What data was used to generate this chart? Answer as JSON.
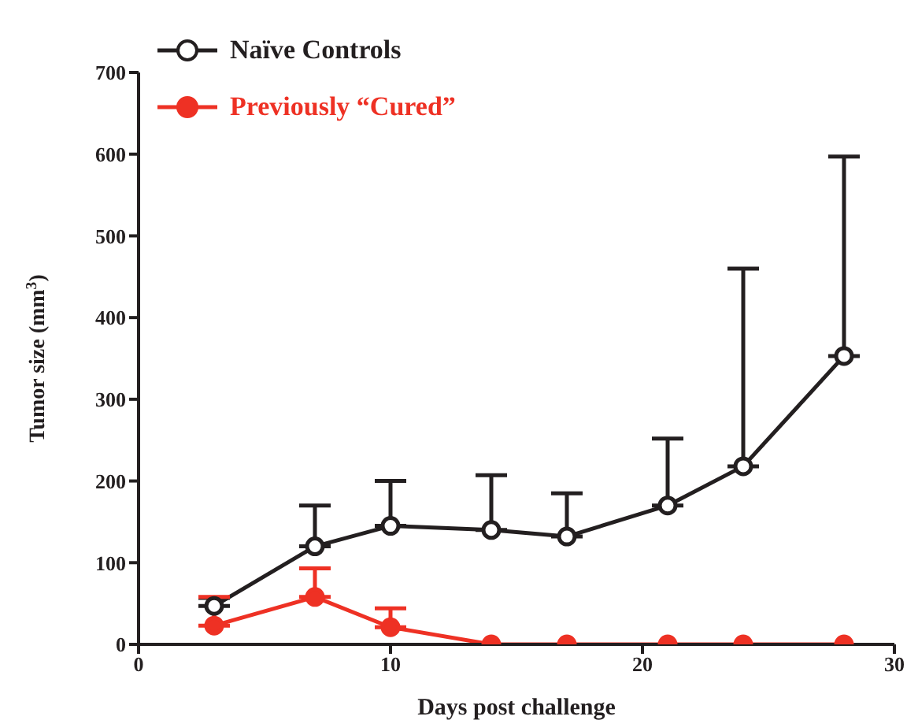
{
  "chart_data": {
    "type": "line",
    "xlabel": "Days post challenge",
    "ylabel": "Tumor size (mm$^{3}$)",
    "xlim": [
      0,
      30
    ],
    "xticks": [
      0,
      10,
      20,
      30
    ],
    "ylim": [
      0,
      700
    ],
    "yticks": [
      0,
      100,
      200,
      300,
      400,
      500,
      600,
      700
    ],
    "x": [
      3,
      7,
      10,
      14,
      17,
      21,
      24,
      28
    ],
    "series": [
      {
        "name": "Naïve Controls",
        "color": "#231f20",
        "marker": "circle",
        "values": [
          47,
          120,
          145,
          140,
          132,
          170,
          218,
          353
        ],
        "errors": [
          [
            47,
            57
          ],
          [
            120,
            170
          ],
          [
            145,
            200
          ],
          [
            140,
            207
          ],
          [
            132,
            185
          ],
          [
            170,
            252
          ],
          [
            218,
            460
          ],
          [
            353,
            597
          ]
        ]
      },
      {
        "name": "Previously “Cured”",
        "color": "#ee3124",
        "marker": "circle",
        "values": [
          23,
          58,
          21,
          0,
          0,
          0,
          0,
          0
        ],
        "errors": [
          [
            23,
            58
          ],
          [
            58,
            93
          ],
          [
            21,
            44
          ],
          null,
          null,
          null,
          null,
          null
        ]
      }
    ],
    "legend": "top left",
    "grid": false
  }
}
